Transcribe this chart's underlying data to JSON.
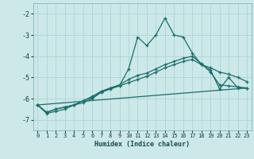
{
  "xlabel": "Humidex (Indice chaleur)",
  "bg_color": "#cce8e8",
  "grid_color": "#b0d4d4",
  "line_color": "#1a6e6a",
  "xlim": [
    -0.5,
    23.5
  ],
  "ylim": [
    -7.5,
    -1.5
  ],
  "yticks": [
    -7,
    -6,
    -5,
    -4,
    -3,
    -2
  ],
  "xticks": [
    0,
    1,
    2,
    3,
    4,
    5,
    6,
    7,
    8,
    9,
    10,
    11,
    12,
    13,
    14,
    15,
    16,
    17,
    18,
    19,
    20,
    21,
    22,
    23
  ],
  "series1_x": [
    0,
    1,
    2,
    3,
    4,
    5,
    6,
    7,
    8,
    9,
    10,
    11,
    12,
    13,
    14,
    15,
    16,
    17,
    18,
    19,
    20,
    21,
    22,
    23
  ],
  "series1_y": [
    -6.3,
    -6.7,
    -6.6,
    -6.5,
    -6.3,
    -6.2,
    -6.0,
    -5.7,
    -5.5,
    -5.4,
    -4.6,
    -3.1,
    -3.5,
    -3.0,
    -2.2,
    -3.0,
    -3.1,
    -3.85,
    -4.4,
    -4.65,
    -5.55,
    -5.0,
    -5.5,
    -5.5
  ],
  "series2_x": [
    0,
    1,
    2,
    3,
    4,
    5,
    6,
    7,
    8,
    9,
    10,
    11,
    12,
    13,
    14,
    15,
    16,
    17,
    18,
    19,
    20,
    21,
    22,
    23
  ],
  "series2_y": [
    -6.3,
    -6.65,
    -6.5,
    -6.4,
    -6.3,
    -6.1,
    -5.95,
    -5.7,
    -5.55,
    -5.4,
    -5.25,
    -5.1,
    -4.95,
    -4.75,
    -4.55,
    -4.4,
    -4.25,
    -4.15,
    -4.4,
    -4.55,
    -4.75,
    -4.85,
    -5.0,
    -5.2
  ],
  "series3_x": [
    0,
    1,
    2,
    3,
    4,
    5,
    6,
    7,
    8,
    9,
    10,
    11,
    12,
    13,
    14,
    15,
    16,
    17,
    18,
    19,
    20,
    21,
    22,
    23
  ],
  "series3_y": [
    -6.3,
    -6.65,
    -6.5,
    -6.4,
    -6.3,
    -6.1,
    -5.9,
    -5.65,
    -5.5,
    -5.35,
    -5.1,
    -4.9,
    -4.8,
    -4.6,
    -4.4,
    -4.25,
    -4.1,
    -4.0,
    -4.35,
    -4.75,
    -5.35,
    -5.4,
    -5.45,
    -5.5
  ],
  "series4_x": [
    0,
    23
  ],
  "series4_y": [
    -6.3,
    -5.5
  ]
}
